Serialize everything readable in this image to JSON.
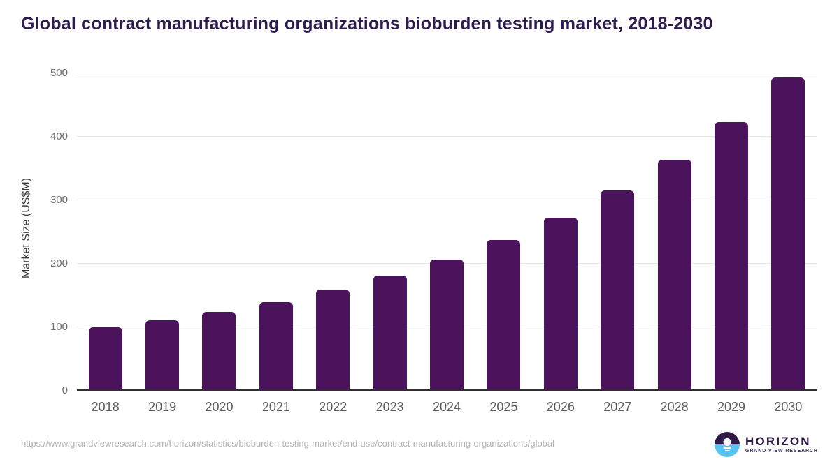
{
  "header": {
    "title": "Global contract manufacturing organizations bioburden testing market, 2018-2030"
  },
  "chart_data": {
    "type": "bar",
    "title": "Global contract manufacturing organizations bioburden testing market, 2018-2030",
    "categories": [
      "2018",
      "2019",
      "2020",
      "2021",
      "2022",
      "2023",
      "2024",
      "2025",
      "2026",
      "2027",
      "2028",
      "2029",
      "2030"
    ],
    "values": [
      99,
      110,
      123,
      139,
      158,
      180,
      206,
      236,
      272,
      314,
      363,
      422,
      492
    ],
    "xlabel": "",
    "ylabel": "Market Size (US$M)",
    "ylim": [
      0,
      500
    ],
    "yticks": [
      0,
      100,
      200,
      300,
      400,
      500
    ],
    "grid": "horizontal-only",
    "legend": "none",
    "bar_color": "#4a135c"
  },
  "colors": {
    "title": "#2e1b4e",
    "bar": "#4a135c",
    "gridline": "#e8e8ea",
    "axis_line": "#2e2e2e",
    "y_tick": "#6f6f6f",
    "x_tick": "#5c5c5c",
    "y_axis_title": "#3a3a3a",
    "source_url": "#b4b4b4",
    "logo_purple": "#2e1a47",
    "logo_blue": "#59c4f0"
  },
  "footer": {
    "source_url": "https://www.grandviewresearch.com/horizon/statistics/bioburden-testing-market/end-use/contract-manufacturing-organizations/global",
    "logo": {
      "icon": "horizon-sunset-icon",
      "brand": "HORIZON",
      "sub_brand": "GRAND VIEW RESEARCH"
    }
  }
}
